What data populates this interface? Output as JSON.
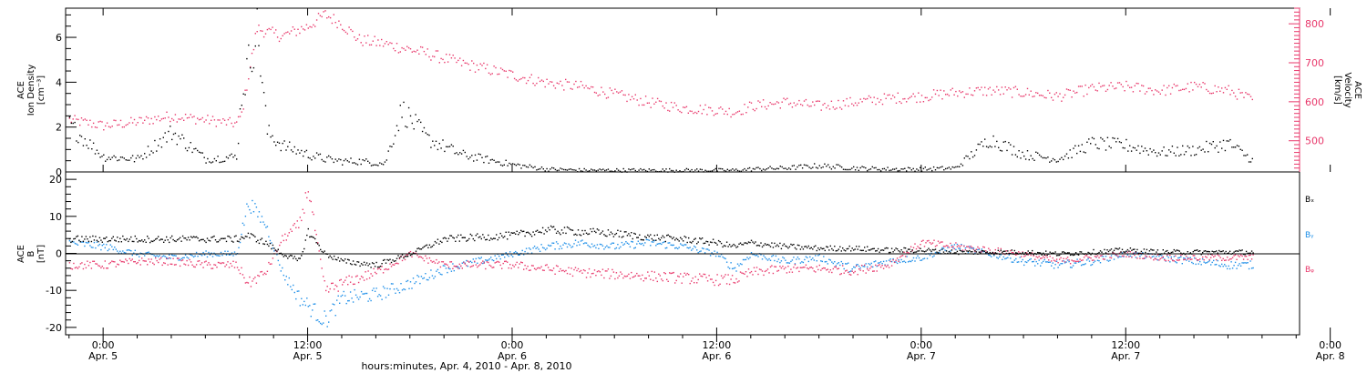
{
  "chart_data": [
    {
      "type": "scatter",
      "panel": "ion-density-velocity",
      "ylabel_lines": [
        "ACE",
        "Ion Density",
        "[cm⁻³]"
      ],
      "ylabel_right_lines": [
        "ACE",
        "Velocity",
        "[km/s]"
      ],
      "ylim": [
        0,
        7.3
      ],
      "y_ticks": [
        0,
        2,
        4,
        6
      ],
      "y2lim": [
        420,
        840
      ],
      "y2_ticks": [
        500,
        600,
        700,
        800
      ],
      "right_axis_color": "#e8386b",
      "x_hours": [
        -2.0,
        0,
        2,
        4,
        6,
        7.8,
        8.1,
        9,
        9.6,
        10.5,
        12,
        13,
        14,
        15,
        16.5,
        17.5,
        19,
        21,
        24,
        26,
        28,
        30,
        32,
        34,
        36,
        37,
        38,
        40,
        42,
        44,
        46,
        48,
        50,
        52,
        54,
        56,
        58,
        60,
        62,
        64,
        66,
        67.5
      ],
      "series": [
        {
          "name": "",
          "color": "#000000",
          "values": [
            2.1,
            0.7,
            0.6,
            1.8,
            0.6,
            0.7,
            3.5,
            6.5,
            1.8,
            1.2,
            0.8,
            0.6,
            0.5,
            0.5,
            0.4,
            2.8,
            1.5,
            0.8,
            0.35,
            0.15,
            0.1,
            0.1,
            0.1,
            0.1,
            0.1,
            0.1,
            0.15,
            0.2,
            0.3,
            0.2,
            0.15,
            0.15,
            0.2,
            1.5,
            0.8,
            0.6,
            1.3,
            1.2,
            0.9,
            1.0,
            1.3,
            0.5
          ]
        },
        {
          "name": "",
          "color": "#e8386b",
          "values": [
            555,
            540,
            550,
            565,
            555,
            545,
            570,
            790,
            780,
            770,
            795,
            825,
            800,
            760,
            750,
            740,
            725,
            700,
            670,
            650,
            640,
            620,
            600,
            585,
            580,
            575,
            590,
            600,
            590,
            600,
            610,
            615,
            625,
            630,
            625,
            615,
            635,
            640,
            630,
            640,
            630,
            605
          ]
        }
      ]
    },
    {
      "type": "scatter",
      "panel": "magnetic-field",
      "ylabel_lines": [
        "ACE",
        "B",
        "[nT]"
      ],
      "ylim": [
        -22,
        22
      ],
      "y_ticks": [
        -20,
        -10,
        0,
        10,
        20
      ],
      "x_hours": [
        -2.0,
        0,
        2,
        4,
        6,
        7.8,
        8.5,
        9.5,
        10.5,
        11.5,
        12,
        13,
        14,
        16,
        18,
        20,
        24,
        26,
        28,
        30,
        32,
        34,
        36,
        37,
        38,
        40,
        42,
        44,
        46,
        48,
        50,
        52,
        54,
        56,
        58,
        60,
        62,
        64,
        66,
        67.5
      ],
      "series": [
        {
          "name": "Bₓ",
          "color": "#000000",
          "values": [
            4,
            4,
            4,
            4,
            4,
            4,
            5,
            3,
            0,
            -2,
            6,
            0,
            -2,
            -3,
            0,
            4,
            5,
            6.5,
            6,
            5.5,
            4.5,
            4,
            3,
            2,
            3,
            2,
            1.5,
            1.5,
            1,
            1,
            0.5,
            0.5,
            0.5,
            0,
            0.5,
            1,
            0.5,
            0.5,
            0.5,
            0.5
          ]
        },
        {
          "name": "Bᵧ",
          "color": "#1e8fe8",
          "values": [
            3,
            2,
            0,
            -1,
            0,
            0,
            14,
            8,
            -5,
            -12,
            -14,
            -18,
            -12,
            -11,
            -8,
            -4,
            0,
            2,
            3,
            2,
            3,
            2,
            0,
            -4,
            0,
            -2,
            -1,
            -4,
            -2,
            -1,
            2,
            0,
            -2,
            -3,
            -2,
            0,
            -1,
            -2,
            -3,
            -3
          ]
        },
        {
          "name": "Bᵩ",
          "color": "#e8386b",
          "values": [
            -3,
            -3,
            -2,
            -2,
            -3,
            -3,
            -8,
            -5,
            4,
            8,
            18,
            -10,
            -8,
            -5,
            0,
            -3,
            -3,
            -4,
            -5,
            -5.5,
            -6,
            -6.5,
            -7,
            -7,
            -5,
            -4,
            -4,
            -4.5,
            -3,
            3,
            2,
            1,
            0,
            -2,
            -1,
            0,
            -1,
            -1,
            -1,
            -1
          ]
        }
      ]
    }
  ],
  "x_axis": {
    "xlim_hours": [
      -2.2,
      70.2
    ],
    "ticks": [
      {
        "hour": 0,
        "time": "0:00",
        "day": "Apr. 5"
      },
      {
        "hour": 12,
        "time": "12:00",
        "day": "Apr. 5"
      },
      {
        "hour": 24,
        "time": "0:00",
        "day": "Apr. 6"
      },
      {
        "hour": 36,
        "time": "12:00",
        "day": "Apr. 6"
      },
      {
        "hour": 48,
        "time": "0:00",
        "day": "Apr. 7"
      },
      {
        "hour": 60,
        "time": "12:00",
        "day": "Apr. 7"
      },
      {
        "hour": 72,
        "time": "0:00",
        "day": "Apr. 8"
      }
    ],
    "label": "hours:minutes, Apr.  4, 2010 - Apr.  8, 2010"
  }
}
